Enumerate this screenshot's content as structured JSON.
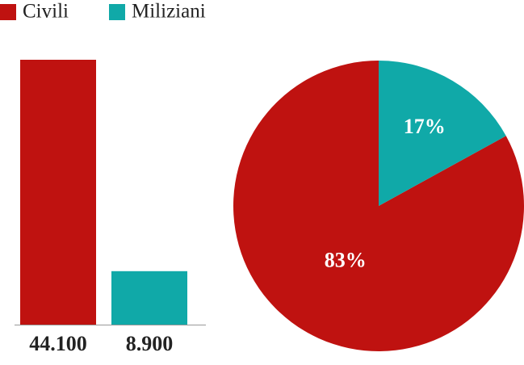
{
  "chart_data": [
    {
      "type": "bar",
      "categories": [
        "Civili",
        "Miliziani"
      ],
      "values": [
        44100,
        8900
      ],
      "value_labels": [
        "44.100",
        "8.900"
      ],
      "colors": [
        "#bf1210",
        "#10a9a8"
      ]
    },
    {
      "type": "pie",
      "values": [
        83,
        17
      ],
      "value_labels": [
        "83%",
        "17%"
      ],
      "colors": [
        "#bf1210",
        "#10a9a8"
      ]
    }
  ]
}
